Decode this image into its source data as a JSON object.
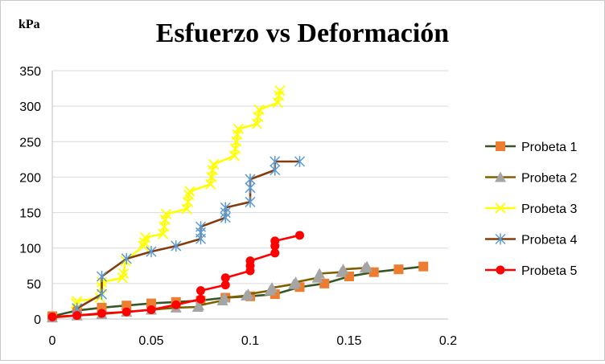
{
  "chart_data": {
    "type": "line",
    "title": "Esfuerzo vs Deformación",
    "ylabel": "kPa",
    "xlabel": "",
    "xlim": [
      0,
      0.2
    ],
    "ylim": [
      0,
      350
    ],
    "xticks": [
      "0",
      "0.05",
      "0.1",
      "0.15",
      "0.2"
    ],
    "yticks": [
      "0",
      "50",
      "100",
      "150",
      "200",
      "250",
      "300",
      "350"
    ],
    "grid": "horizontal",
    "legend_position": "right",
    "series": [
      {
        "name": "Probeta 1",
        "line_color": "#375623",
        "marker_color": "#ED7D31",
        "marker": "square",
        "x": [
          0,
          0.0125,
          0.025,
          0.0375,
          0.05,
          0.0625,
          0.075,
          0.0875,
          0.1,
          0.1125,
          0.125,
          0.1375,
          0.15,
          0.1625,
          0.175,
          0.1875
        ],
        "y": [
          4,
          12,
          16,
          19,
          22,
          24,
          26,
          30,
          32,
          35,
          45,
          50,
          60,
          66,
          70,
          74
        ]
      },
      {
        "name": "Probeta 2",
        "line_color": "#7F6000",
        "marker_color": "#A5A5A5",
        "marker": "triangle",
        "x": [
          0,
          0.0125,
          0.025,
          0.0375,
          0.05,
          0.0625,
          0.0735,
          0.074,
          0.086,
          0.087,
          0.098,
          0.099,
          0.11,
          0.111,
          0.122,
          0.123,
          0.134,
          0.135,
          0.146,
          0.147,
          0.158,
          0.159
        ],
        "y": [
          2,
          5,
          7,
          10,
          13,
          16,
          17,
          19,
          26,
          30,
          33,
          35,
          40,
          44,
          49,
          52,
          58,
          64,
          66,
          70,
          72,
          74
        ]
      },
      {
        "name": "Probeta 3",
        "line_color": "#FFFF00",
        "marker_color": "#FFFF00",
        "marker": "x",
        "x": [
          0.012,
          0.0125,
          0.024,
          0.025,
          0.025,
          0.0355,
          0.036,
          0.037,
          0.046,
          0.0465,
          0.047,
          0.056,
          0.0565,
          0.057,
          0.0575,
          0.068,
          0.0685,
          0.069,
          0.0695,
          0.08,
          0.0805,
          0.081,
          0.0815,
          0.092,
          0.0925,
          0.093,
          0.0935,
          0.094,
          0.1035,
          0.104,
          0.1045,
          0.114,
          0.1145,
          0.115
        ],
        "y": [
          22,
          25,
          30,
          45,
          52,
          58,
          64,
          82,
          103,
          108,
          115,
          120,
          130,
          140,
          148,
          155,
          165,
          175,
          180,
          190,
          200,
          210,
          218,
          230,
          240,
          250,
          260,
          268,
          275,
          285,
          295,
          305,
          315,
          322
        ]
      },
      {
        "name": "Probeta 4",
        "line_color": "#843C0C",
        "marker_color": "#5B9BD5",
        "marker": "star",
        "x": [
          0.0125,
          0.025,
          0.025,
          0.0375,
          0.05,
          0.0625,
          0.075,
          0.075,
          0.075,
          0.0875,
          0.0875,
          0.0875,
          0.1,
          0.1,
          0.1,
          0.1125,
          0.1125,
          0.125
        ],
        "y": [
          15,
          35,
          60,
          85,
          95,
          103,
          113,
          122,
          130,
          143,
          150,
          157,
          165,
          185,
          197,
          210,
          222,
          222
        ]
      },
      {
        "name": "Probeta 5",
        "line_color": "#FF0000",
        "marker_color": "#FF0000",
        "marker": "circle",
        "x": [
          0,
          0.0125,
          0.025,
          0.0375,
          0.05,
          0.0625,
          0.075,
          0.075,
          0.0875,
          0.0875,
          0.1,
          0.1,
          0.1,
          0.1125,
          0.1125,
          0.1125,
          0.125
        ],
        "y": [
          3,
          5,
          8,
          10,
          13,
          20,
          28,
          40,
          48,
          58,
          68,
          75,
          82,
          93,
          103,
          110,
          118
        ]
      }
    ]
  }
}
